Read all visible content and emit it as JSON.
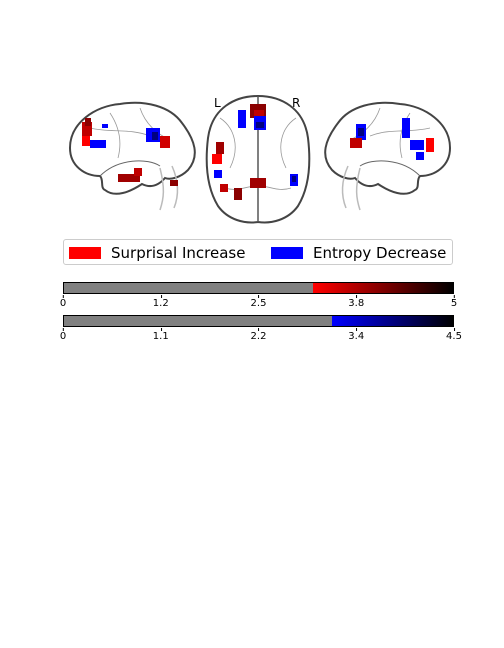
{
  "brain_labels": {
    "left": "L",
    "right": "R"
  },
  "legend": {
    "items": [
      {
        "label": "Surprisal Increase",
        "color": "#ff0000"
      },
      {
        "label": "Entropy Decrease",
        "color": "#0000ff"
      }
    ]
  },
  "colorbars": [
    {
      "name": "surprisal",
      "min": 0,
      "max": 5,
      "threshold": 3.2,
      "null_color": "#808080",
      "gradient": [
        "#ff0000",
        "#000000"
      ],
      "ticks": [
        "0",
        "1.2",
        "2.5",
        "3.8",
        "5"
      ]
    },
    {
      "name": "entropy",
      "min": 0,
      "max": 4.5,
      "threshold": 3.1,
      "null_color": "#808080",
      "gradient": [
        "#0000ff",
        "#000000"
      ],
      "ticks": [
        "0",
        "1.1",
        "2.2",
        "3.4",
        "4.5"
      ]
    }
  ]
}
